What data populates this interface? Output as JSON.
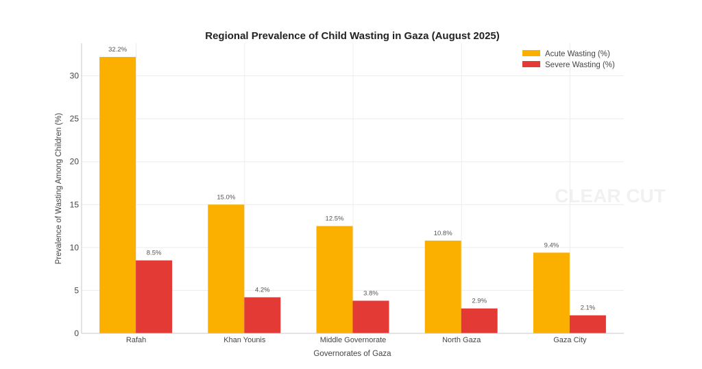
{
  "chart_data": {
    "type": "bar",
    "title": "Regional Prevalence of Child Wasting in Gaza (August 2025)",
    "xlabel": "Governorates of Gaza",
    "ylabel": "Prevalence of Wasting Among Children (%)",
    "categories": [
      "Rafah",
      "Khan Younis",
      "Middle Governorate",
      "North Gaza",
      "Gaza City"
    ],
    "series": [
      {
        "name": "Acute Wasting (%)",
        "color": "#FBB000",
        "values": [
          32.2,
          15.0,
          12.5,
          10.8,
          9.4
        ],
        "labels": [
          "32.2%",
          "15.0%",
          "12.5%",
          "10.8%",
          "9.4%"
        ]
      },
      {
        "name": "Severe Wasting (%)",
        "color": "#E33A35",
        "values": [
          8.5,
          4.2,
          3.8,
          2.9,
          2.1
        ],
        "labels": [
          "8.5%",
          "4.2%",
          "3.8%",
          "2.9%",
          "2.1%"
        ]
      }
    ],
    "yticks": [
      0,
      5,
      10,
      15,
      20,
      25,
      30
    ],
    "ylim": [
      0,
      33.8
    ],
    "grid": true,
    "legend": "top-right",
    "watermark": "CLEAR CUT"
  }
}
